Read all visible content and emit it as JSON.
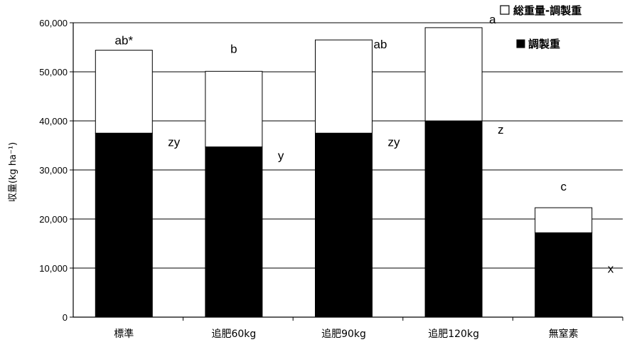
{
  "chart_data": {
    "type": "bar",
    "stacked": true,
    "categories": [
      "標準",
      "追肥60kg",
      "追肥90kg",
      "追肥120kg",
      "無窒素"
    ],
    "series": [
      {
        "name": "調製重",
        "color": "#000000",
        "values": [
          37500,
          34700,
          37500,
          40000,
          17200
        ]
      },
      {
        "name": "総重量-調製重",
        "color": "#ffffff",
        "values": [
          16900,
          15400,
          19000,
          19000,
          5100
        ]
      }
    ],
    "totals": [
      54400,
      50100,
      56500,
      59000,
      22300
    ],
    "top_labels": [
      "ab*",
      "b",
      "ab",
      "a",
      "c"
    ],
    "inner_labels": [
      "zy",
      "y",
      "zy",
      "z",
      "x"
    ],
    "ylabel": "収量(kg ha⁻¹)",
    "y_ticks": [
      "0",
      "10,000",
      "20,000",
      "30,000",
      "40,000",
      "50,000",
      "60,000"
    ],
    "ylim": [
      0,
      60000
    ],
    "grid": true,
    "legend_position": "top-right"
  }
}
